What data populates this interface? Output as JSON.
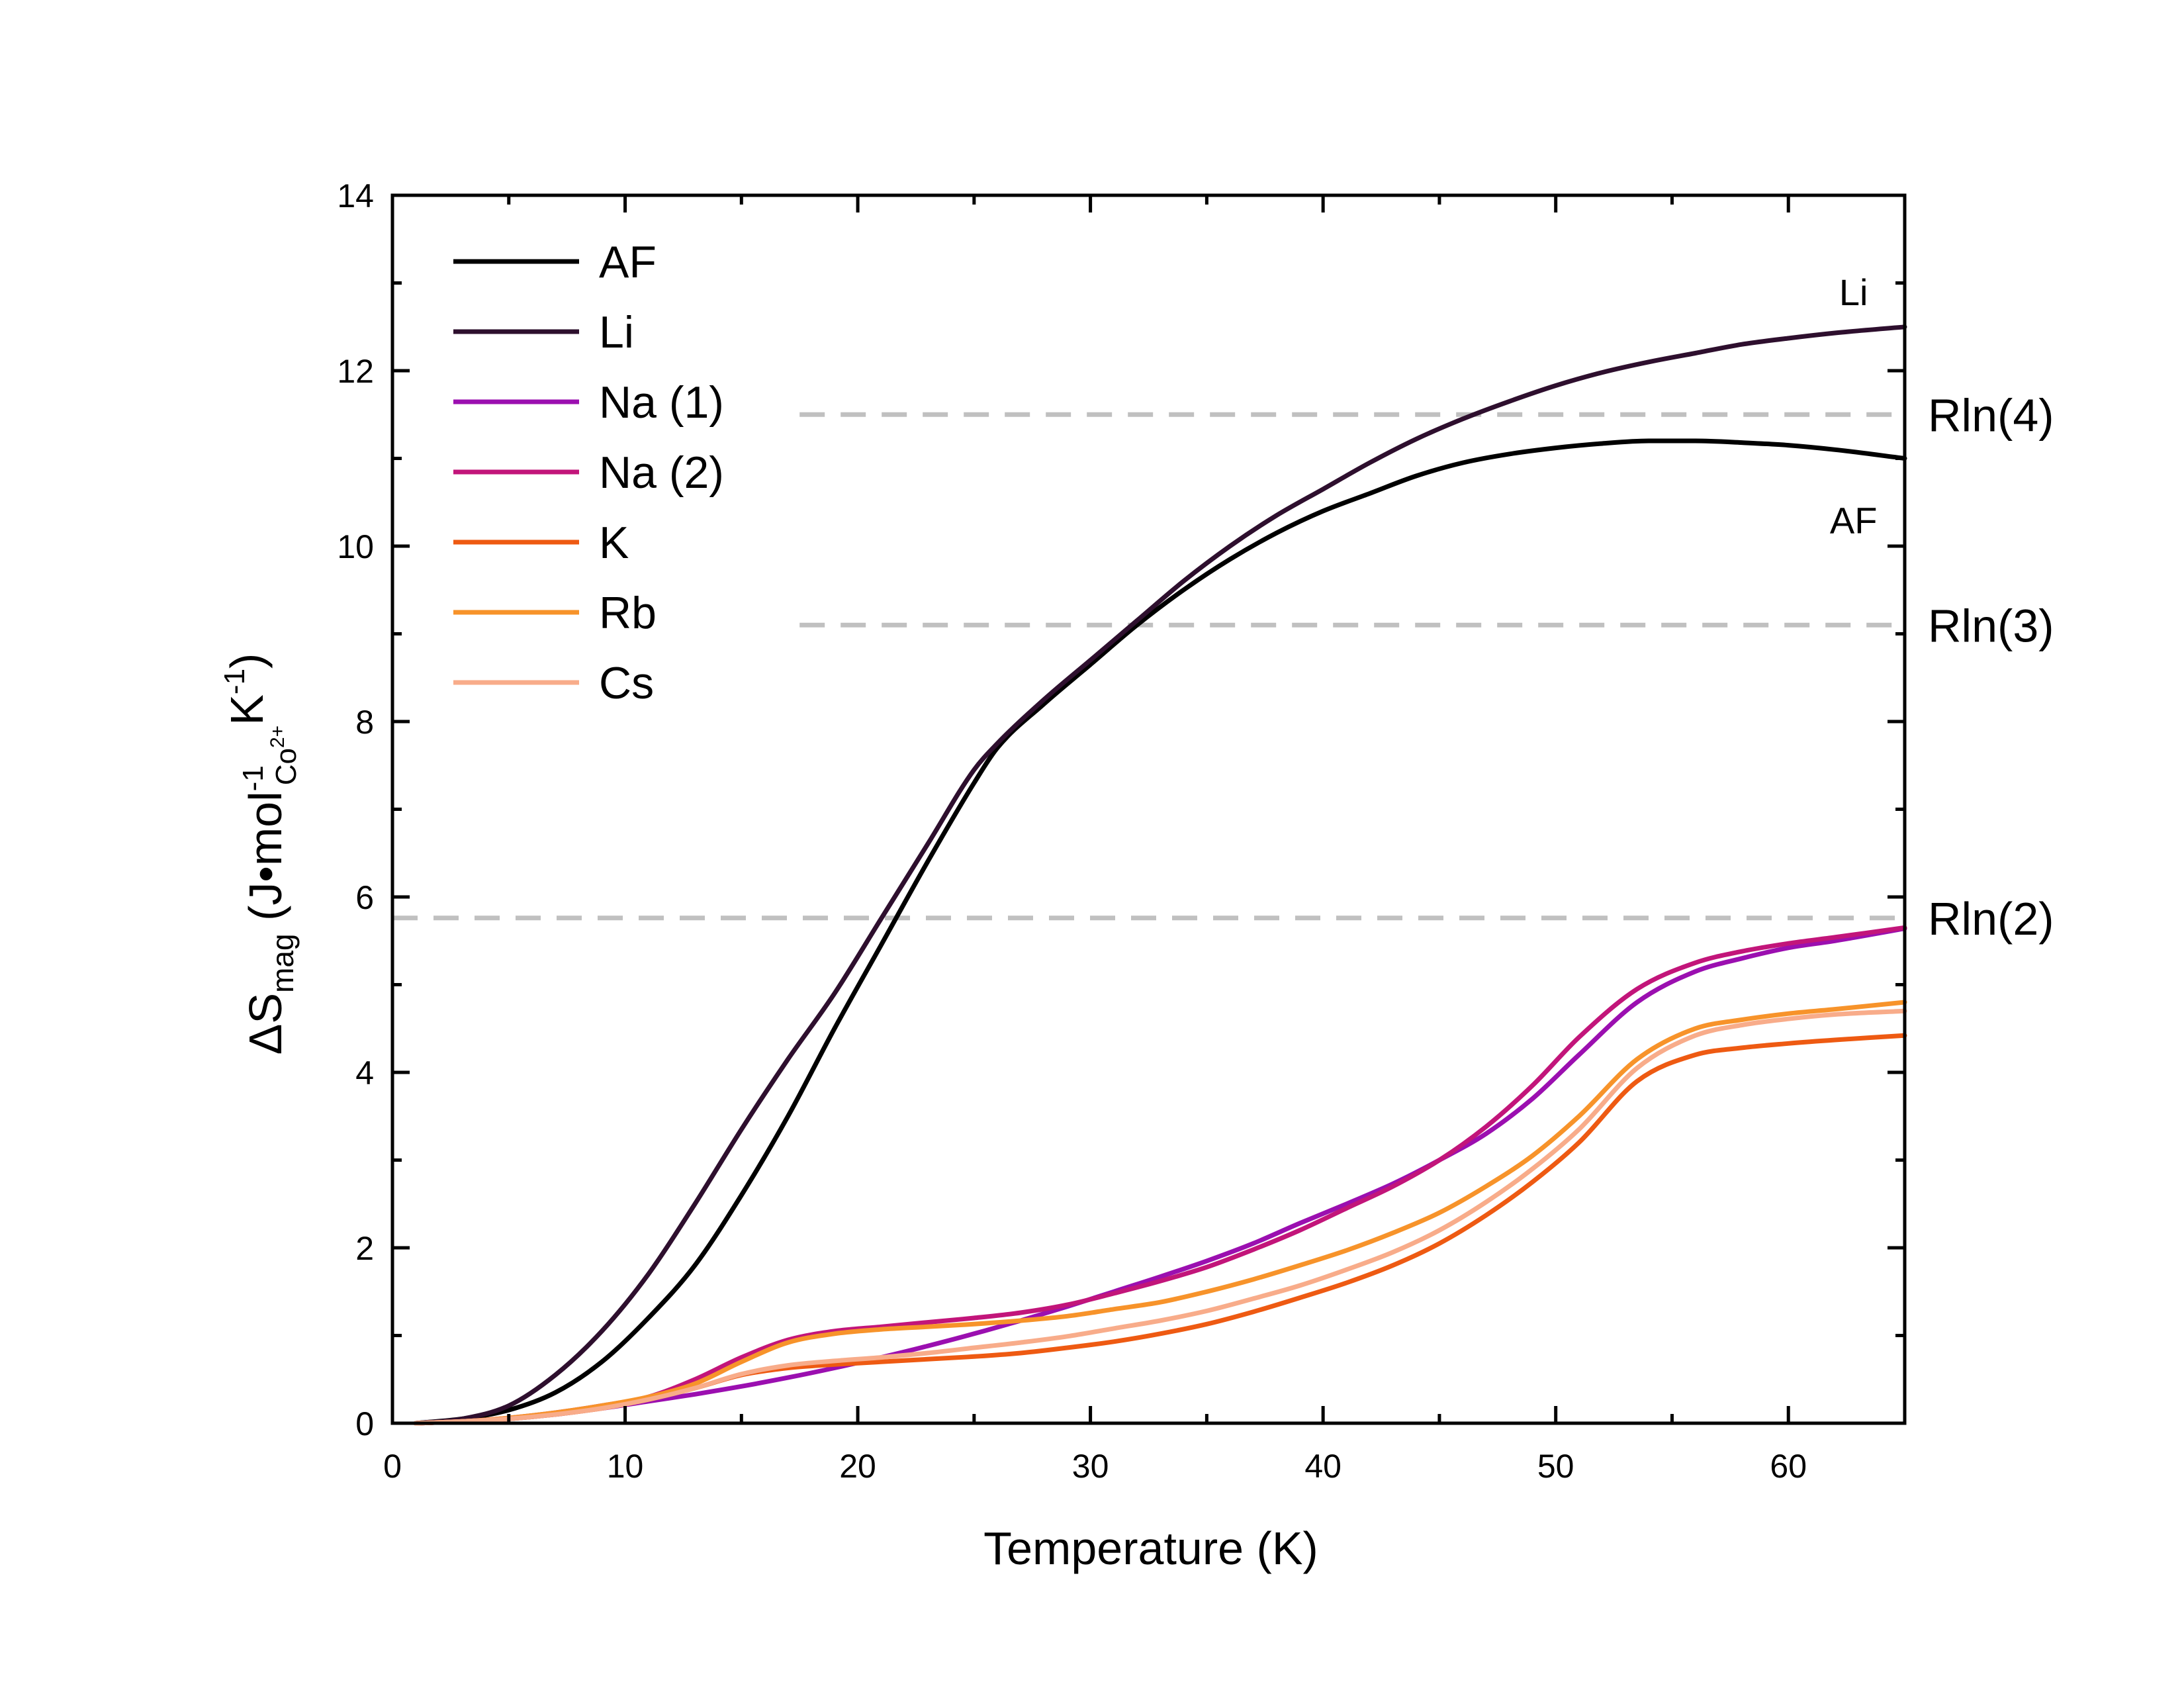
{
  "chart_data": {
    "type": "line",
    "xlabel": "Temperature (K)",
    "ylabel": {
      "prefix": "ΔS",
      "prefix_sub": "mag",
      "unit_open": " (J•mol",
      "mol_sup": "-1",
      "mol_sub": "Co",
      "mol_sub_sup": "2+",
      "unit_k": "K",
      "k_sup": "-1",
      "unit_close": ")"
    },
    "xlim": [
      0,
      65
    ],
    "ylim": [
      0,
      14
    ],
    "xticks": [
      0,
      10,
      20,
      30,
      40,
      50,
      60
    ],
    "yticks": [
      0,
      2,
      4,
      6,
      8,
      10,
      12,
      14
    ],
    "grid": false,
    "legend_position": "top-left",
    "reference_lines": [
      {
        "label": "Rln(4)",
        "y": 11.5,
        "x_start": 17.5,
        "color": "#c0c0c0"
      },
      {
        "label": "Rln(3)",
        "y": 9.1,
        "x_start": 17.5,
        "color": "#c0c0c0"
      },
      {
        "label": "Rln(2)",
        "y": 5.76,
        "x_start": 0,
        "color": "#c0c0c0"
      }
    ],
    "curve_labels": [
      {
        "text": "Li",
        "x": 62.8,
        "y": 12.9
      },
      {
        "text": "AF",
        "x": 62.8,
        "y": 10.3
      }
    ],
    "series": [
      {
        "name": "AF",
        "color": "#000000",
        "x": [
          1,
          3,
          5,
          7,
          9,
          11,
          13,
          15,
          17,
          19,
          21,
          23,
          25,
          26,
          28,
          30,
          32,
          34,
          36,
          38,
          40,
          42,
          44,
          46,
          48,
          50,
          52,
          54,
          56,
          58,
          60,
          62,
          65
        ],
        "y": [
          0,
          0.05,
          0.15,
          0.35,
          0.7,
          1.2,
          1.8,
          2.6,
          3.5,
          4.5,
          5.45,
          6.4,
          7.3,
          7.7,
          8.2,
          8.65,
          9.1,
          9.5,
          9.85,
          10.15,
          10.4,
          10.6,
          10.8,
          10.95,
          11.05,
          11.12,
          11.17,
          11.2,
          11.2,
          11.18,
          11.15,
          11.1,
          11.0
        ]
      },
      {
        "name": "Li",
        "color": "#2e0f2e",
        "x": [
          1,
          3,
          5,
          7,
          9,
          11,
          13,
          15,
          17,
          19,
          21,
          23,
          25,
          26,
          28,
          30,
          32,
          34,
          36,
          38,
          40,
          42,
          44,
          46,
          48,
          50,
          52,
          54,
          56,
          58,
          60,
          62,
          65
        ],
        "y": [
          0,
          0.05,
          0.2,
          0.55,
          1.05,
          1.7,
          2.5,
          3.35,
          4.15,
          4.9,
          5.75,
          6.6,
          7.45,
          7.75,
          8.25,
          8.7,
          9.15,
          9.6,
          10.0,
          10.35,
          10.65,
          10.95,
          11.22,
          11.45,
          11.65,
          11.83,
          11.98,
          12.1,
          12.2,
          12.3,
          12.37,
          12.43,
          12.5
        ]
      },
      {
        "name": "Na (1)",
        "color": "#9b0fb0",
        "x": [
          1,
          3,
          5,
          7,
          9,
          11,
          13,
          15,
          17,
          19,
          21,
          23,
          25,
          27,
          29,
          31,
          33,
          35,
          37,
          39,
          41,
          43,
          45,
          47,
          49,
          51,
          53.5,
          56,
          58,
          60,
          62,
          65
        ],
        "y": [
          0,
          0.02,
          0.05,
          0.1,
          0.17,
          0.25,
          0.33,
          0.42,
          0.52,
          0.63,
          0.75,
          0.88,
          1.02,
          1.17,
          1.33,
          1.5,
          1.67,
          1.85,
          2.05,
          2.28,
          2.5,
          2.73,
          3.0,
          3.3,
          3.7,
          4.2,
          4.8,
          5.15,
          5.3,
          5.42,
          5.5,
          5.64
        ]
      },
      {
        "name": "Na (2)",
        "color": "#c2157a",
        "x": [
          1,
          3,
          5,
          7,
          9,
          11,
          13,
          15,
          17,
          19,
          21,
          23,
          25,
          27,
          29,
          31,
          33,
          35,
          37,
          39,
          41,
          43,
          45,
          47,
          49,
          51,
          53.5,
          56,
          58,
          60,
          62,
          65
        ],
        "y": [
          0,
          0.02,
          0.06,
          0.12,
          0.2,
          0.3,
          0.5,
          0.75,
          0.95,
          1.05,
          1.1,
          1.15,
          1.2,
          1.26,
          1.35,
          1.48,
          1.62,
          1.78,
          1.98,
          2.2,
          2.45,
          2.7,
          3.0,
          3.38,
          3.85,
          4.4,
          4.95,
          5.25,
          5.38,
          5.47,
          5.54,
          5.65
        ]
      },
      {
        "name": "K",
        "color": "#ee5a12",
        "x": [
          1,
          3,
          5,
          7,
          9,
          11,
          13,
          15,
          17,
          19,
          21,
          23,
          25,
          27,
          29,
          31,
          33,
          35,
          37,
          39,
          41,
          43,
          45,
          47,
          49,
          51,
          53.5,
          56,
          58,
          60,
          62,
          65
        ],
        "y": [
          0,
          0.02,
          0.05,
          0.1,
          0.17,
          0.27,
          0.4,
          0.55,
          0.63,
          0.67,
          0.7,
          0.73,
          0.76,
          0.8,
          0.86,
          0.93,
          1.02,
          1.13,
          1.27,
          1.43,
          1.6,
          1.8,
          2.05,
          2.37,
          2.75,
          3.2,
          3.9,
          4.2,
          4.28,
          4.33,
          4.37,
          4.42
        ]
      },
      {
        "name": "Rb",
        "color": "#f7932a",
        "x": [
          1,
          3,
          5,
          7,
          9,
          11,
          13,
          15,
          17,
          19,
          21,
          23,
          25,
          27,
          29,
          31,
          33,
          35,
          37,
          39,
          41,
          43,
          45,
          47,
          49,
          51,
          53.5,
          56,
          58,
          60,
          62,
          65
        ],
        "y": [
          0,
          0.02,
          0.06,
          0.12,
          0.2,
          0.3,
          0.45,
          0.7,
          0.92,
          1.02,
          1.07,
          1.1,
          1.13,
          1.17,
          1.22,
          1.3,
          1.38,
          1.5,
          1.64,
          1.8,
          1.97,
          2.17,
          2.4,
          2.7,
          3.05,
          3.5,
          4.15,
          4.5,
          4.6,
          4.67,
          4.72,
          4.8
        ]
      },
      {
        "name": "Cs",
        "color": "#f8ac8a",
        "x": [
          1,
          3,
          5,
          7,
          9,
          11,
          13,
          15,
          17,
          19,
          21,
          23,
          25,
          27,
          29,
          31,
          33,
          35,
          37,
          39,
          41,
          43,
          45,
          47,
          49,
          51,
          53.5,
          56,
          58,
          60,
          62,
          65
        ],
        "y": [
          0,
          0.02,
          0.05,
          0.1,
          0.17,
          0.27,
          0.4,
          0.56,
          0.66,
          0.71,
          0.75,
          0.8,
          0.86,
          0.92,
          0.99,
          1.08,
          1.17,
          1.28,
          1.42,
          1.57,
          1.75,
          1.95,
          2.2,
          2.52,
          2.9,
          3.35,
          4.05,
          4.42,
          4.54,
          4.61,
          4.66,
          4.7
        ]
      }
    ]
  }
}
